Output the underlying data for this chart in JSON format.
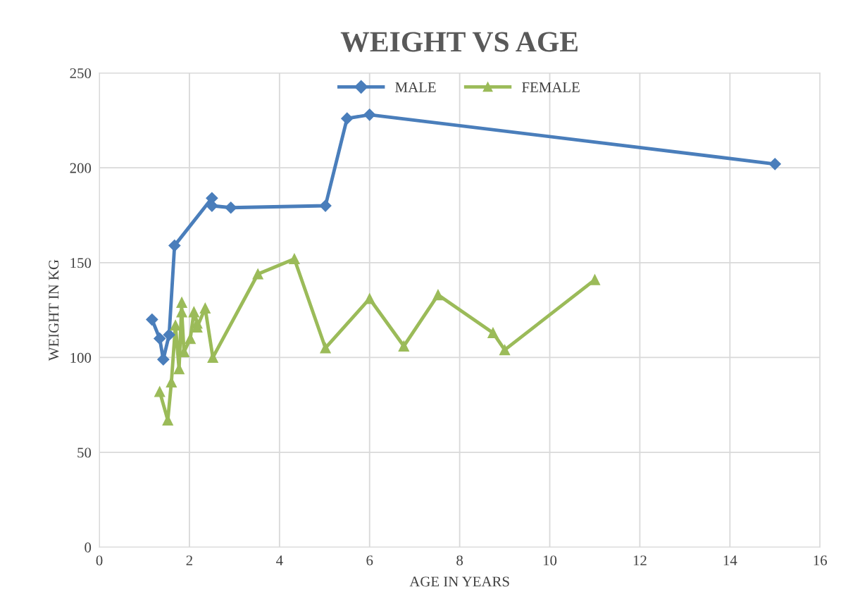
{
  "chart_data": {
    "type": "line",
    "title": "WEIGHT VS AGE",
    "xlabel": "AGE IN YEARS",
    "ylabel": "WEIGHT IN KG",
    "xlim": [
      0,
      16
    ],
    "xticks": [
      0,
      2,
      4,
      6,
      8,
      10,
      12,
      14,
      16
    ],
    "ylim": [
      0,
      250
    ],
    "yticks": [
      0,
      50,
      100,
      150,
      200,
      250
    ],
    "grid": true,
    "legend": "top",
    "line_style": "solid",
    "series": [
      {
        "name": "MALE",
        "color": "#4a7ebb",
        "marker": "diamond",
        "x": [
          1.17,
          1.34,
          1.42,
          1.55,
          1.67,
          2.5,
          2.5,
          2.92,
          5.02,
          5.5,
          6.0,
          15.0
        ],
        "values": [
          120,
          110,
          99,
          112,
          159,
          184,
          180,
          179,
          180,
          226,
          228,
          202
        ]
      },
      {
        "name": "FEMALE",
        "color": "#9bbb59",
        "marker": "triangle",
        "x": [
          1.34,
          1.52,
          1.6,
          1.69,
          1.77,
          1.83,
          1.83,
          1.88,
          2.02,
          2.1,
          2.17,
          2.17,
          2.35,
          2.52,
          3.52,
          4.33,
          5.02,
          6.0,
          6.76,
          7.52,
          8.74,
          9.0,
          11.0
        ],
        "values": [
          82,
          67,
          87,
          117,
          94,
          129,
          124,
          103,
          110,
          124,
          118,
          116,
          126,
          100,
          144,
          152,
          105,
          131,
          106,
          133,
          113,
          104,
          141
        ]
      }
    ]
  }
}
